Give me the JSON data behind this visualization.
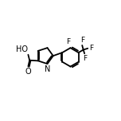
{
  "bg_color": "#ffffff",
  "bond_color": "#000000",
  "font_size": 6.5,
  "bond_width": 1.3,
  "figsize": [
    1.52,
    1.52
  ],
  "dpi": 100,
  "xlim": [
    0.0,
    1.0
  ],
  "ylim": [
    0.2,
    0.85
  ]
}
